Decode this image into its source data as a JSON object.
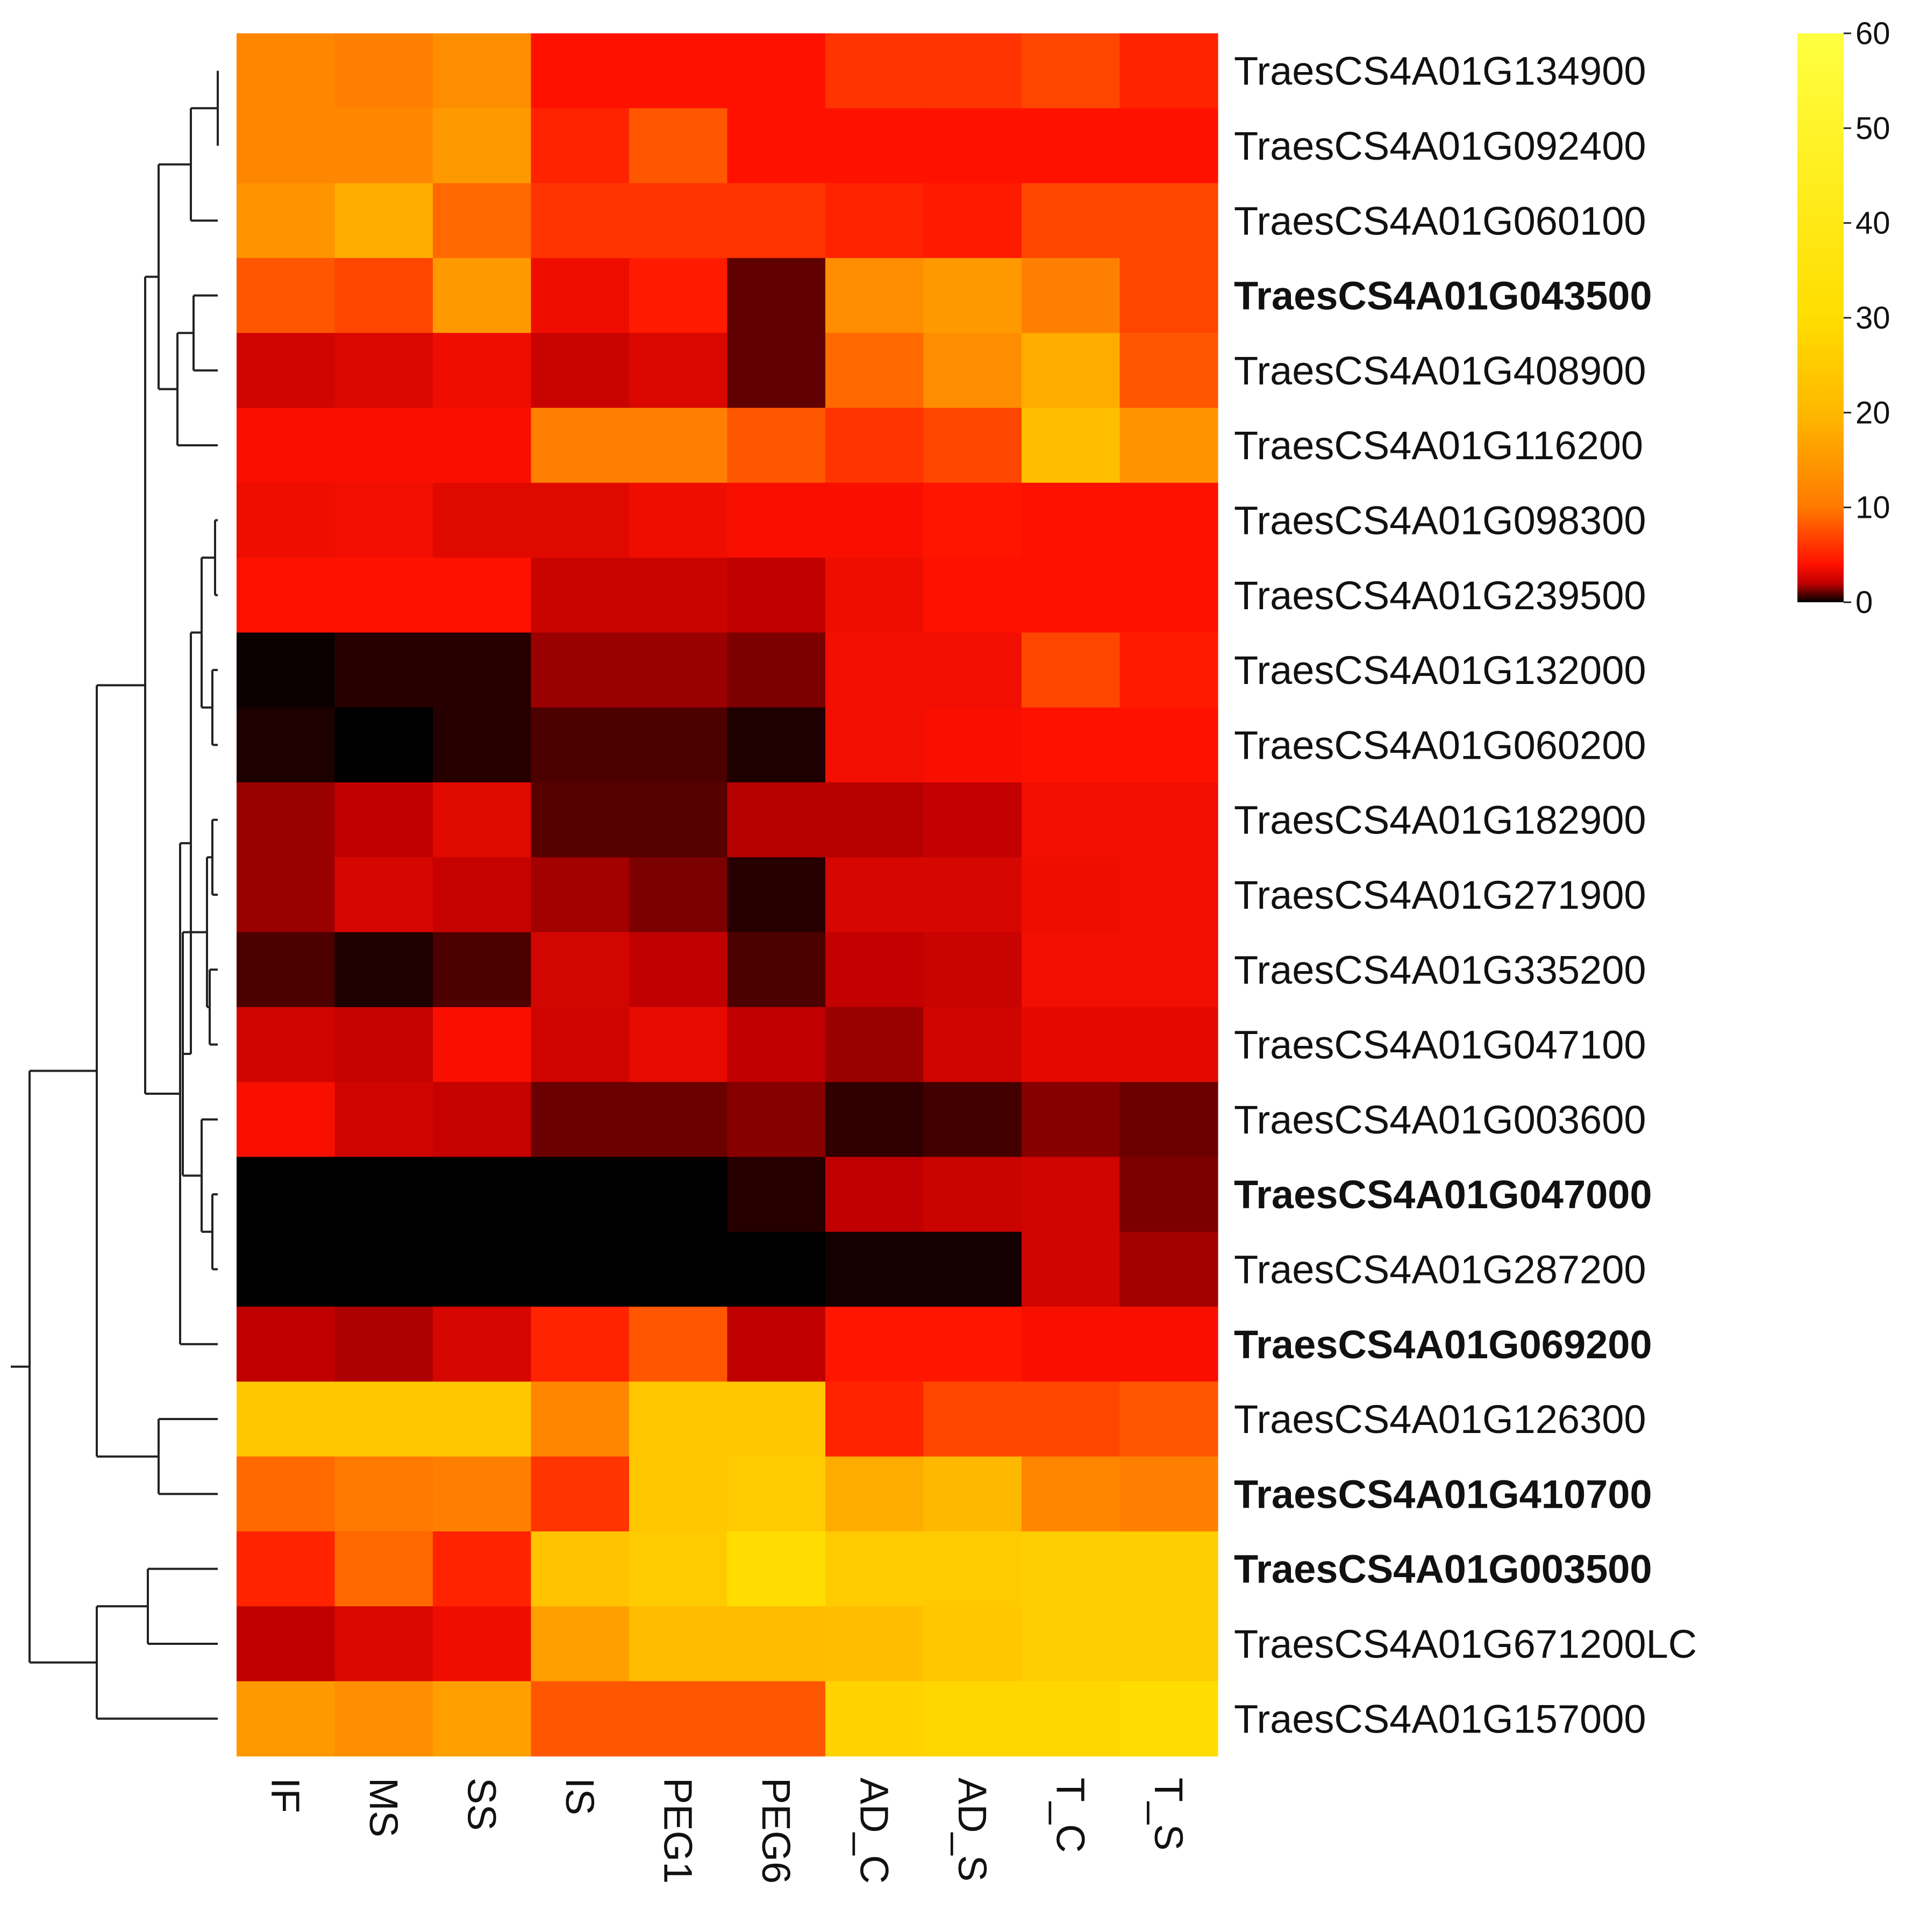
{
  "chart_data": {
    "type": "heatmap",
    "title": "",
    "xlabel": "",
    "ylabel": "",
    "columns": [
      "IF",
      "MS",
      "SS",
      "IS",
      "PEG1",
      "PEG6",
      "AD_C",
      "AD_S",
      "T_C",
      "T_S"
    ],
    "rows": [
      {
        "gene": "TraesCS4A01G134900",
        "bold": false,
        "values": [
          12,
          11,
          13,
          4,
          4,
          4,
          6,
          6,
          7,
          5
        ]
      },
      {
        "gene": "TraesCS4A01G092400",
        "bold": false,
        "values": [
          12,
          12,
          15,
          5,
          8,
          4,
          4,
          4,
          4,
          4
        ]
      },
      {
        "gene": "TraesCS4A01G060100",
        "bold": false,
        "values": [
          14,
          18,
          9,
          6,
          6,
          6,
          5,
          4.5,
          7,
          7
        ]
      },
      {
        "gene": "TraesCS4A01G043500",
        "bold": true,
        "values": [
          8,
          7,
          15,
          3.5,
          4.5,
          1,
          13,
          15,
          11,
          7
        ]
      },
      {
        "gene": "TraesCS4A01G408900",
        "bold": false,
        "values": [
          2.5,
          2.8,
          3.5,
          2.3,
          2.8,
          1,
          9,
          13,
          18,
          8
        ]
      },
      {
        "gene": "TraesCS4A01G116200",
        "bold": false,
        "values": [
          3.8,
          3.8,
          3.8,
          11,
          11,
          8,
          6,
          7,
          22,
          14
        ]
      },
      {
        "gene": "TraesCS4A01G098300",
        "bold": false,
        "values": [
          3.5,
          3.6,
          3,
          3,
          3.5,
          3.8,
          3.8,
          4.2,
          4,
          4
        ]
      },
      {
        "gene": "TraesCS4A01G239500",
        "bold": false,
        "values": [
          4,
          4,
          4,
          2.3,
          2.3,
          2,
          3.5,
          4,
          4,
          4
        ]
      },
      {
        "gene": "TraesCS4A01G132000",
        "bold": false,
        "values": [
          0.1,
          0.4,
          0.4,
          1.6,
          1.6,
          1.3,
          3.6,
          3.6,
          7,
          4.5
        ]
      },
      {
        "gene": "TraesCS4A01G060200",
        "bold": false,
        "values": [
          0.3,
          0,
          0.4,
          0.8,
          0.8,
          0.3,
          3.6,
          3.8,
          4,
          4
        ]
      },
      {
        "gene": "TraesCS4A01G182900",
        "bold": false,
        "values": [
          1.6,
          2,
          3,
          0.9,
          0.9,
          1.9,
          1.9,
          2.1,
          3.6,
          3.6
        ]
      },
      {
        "gene": "TraesCS4A01G271900",
        "bold": false,
        "values": [
          1.6,
          2.7,
          2.2,
          1.7,
          1.3,
          0.4,
          2.7,
          2.7,
          3.5,
          3.6
        ]
      },
      {
        "gene": "TraesCS4A01G335200",
        "bold": false,
        "values": [
          0.8,
          0.3,
          0.8,
          2.6,
          2,
          0.8,
          2.1,
          2.3,
          3.6,
          3.6
        ]
      },
      {
        "gene": "TraesCS4A01G047100",
        "bold": false,
        "values": [
          2.5,
          2.2,
          3.8,
          2.5,
          3.2,
          2,
          1.6,
          2.5,
          3.1,
          3.1
        ]
      },
      {
        "gene": "TraesCS4A01G003600",
        "bold": false,
        "values": [
          3.8,
          2.5,
          2.2,
          1.1,
          1.1,
          1.4,
          0.5,
          0.7,
          1.4,
          1.1
        ]
      },
      {
        "gene": "TraesCS4A01G047000",
        "bold": true,
        "values": [
          0,
          0,
          0,
          0,
          0,
          0.4,
          2,
          2.3,
          2.5,
          1.3
        ]
      },
      {
        "gene": "TraesCS4A01G287200",
        "bold": false,
        "values": [
          0,
          0,
          0,
          0,
          0,
          0,
          0.2,
          0.2,
          2.5,
          1.7
        ]
      },
      {
        "gene": "TraesCS4A01G069200",
        "bold": true,
        "values": [
          2,
          1.8,
          2.7,
          5,
          8,
          2,
          4.2,
          4.2,
          3.8,
          3.8
        ]
      },
      {
        "gene": "TraesCS4A01G126300",
        "bold": false,
        "values": [
          24,
          24,
          24,
          12,
          24,
          24,
          5,
          7,
          7,
          8
        ]
      },
      {
        "gene": "TraesCS4A01G410700",
        "bold": true,
        "values": [
          9,
          10,
          11,
          6,
          24,
          25,
          18,
          20,
          12,
          11
        ]
      },
      {
        "gene": "TraesCS4A01G003500",
        "bold": true,
        "values": [
          5,
          9,
          5,
          23,
          25,
          30,
          25,
          25,
          26,
          26
        ]
      },
      {
        "gene": "TraesCS4A01G671200LC",
        "bold": false,
        "values": [
          2,
          2.8,
          3.5,
          16,
          21,
          21,
          22,
          24,
          26,
          26
        ]
      },
      {
        "gene": "TraesCS4A01G157000",
        "bold": false,
        "values": [
          15,
          13,
          16,
          8,
          8,
          8,
          27,
          28,
          28,
          30
        ]
      }
    ],
    "color_scale": {
      "min": 0,
      "max": 60,
      "ticks": [
        0,
        10,
        20,
        30,
        40,
        50,
        60
      ],
      "stops": [
        {
          "v": 0,
          "color": "#000000"
        },
        {
          "v": 2,
          "color": "#c00000"
        },
        {
          "v": 4,
          "color": "#ff1100"
        },
        {
          "v": 10,
          "color": "#ff7a00"
        },
        {
          "v": 20,
          "color": "#ffb800"
        },
        {
          "v": 30,
          "color": "#ffdd00"
        },
        {
          "v": 60,
          "color": "#ffff40"
        }
      ]
    },
    "dendrogram_shown": true,
    "legend_position": "top-right"
  }
}
